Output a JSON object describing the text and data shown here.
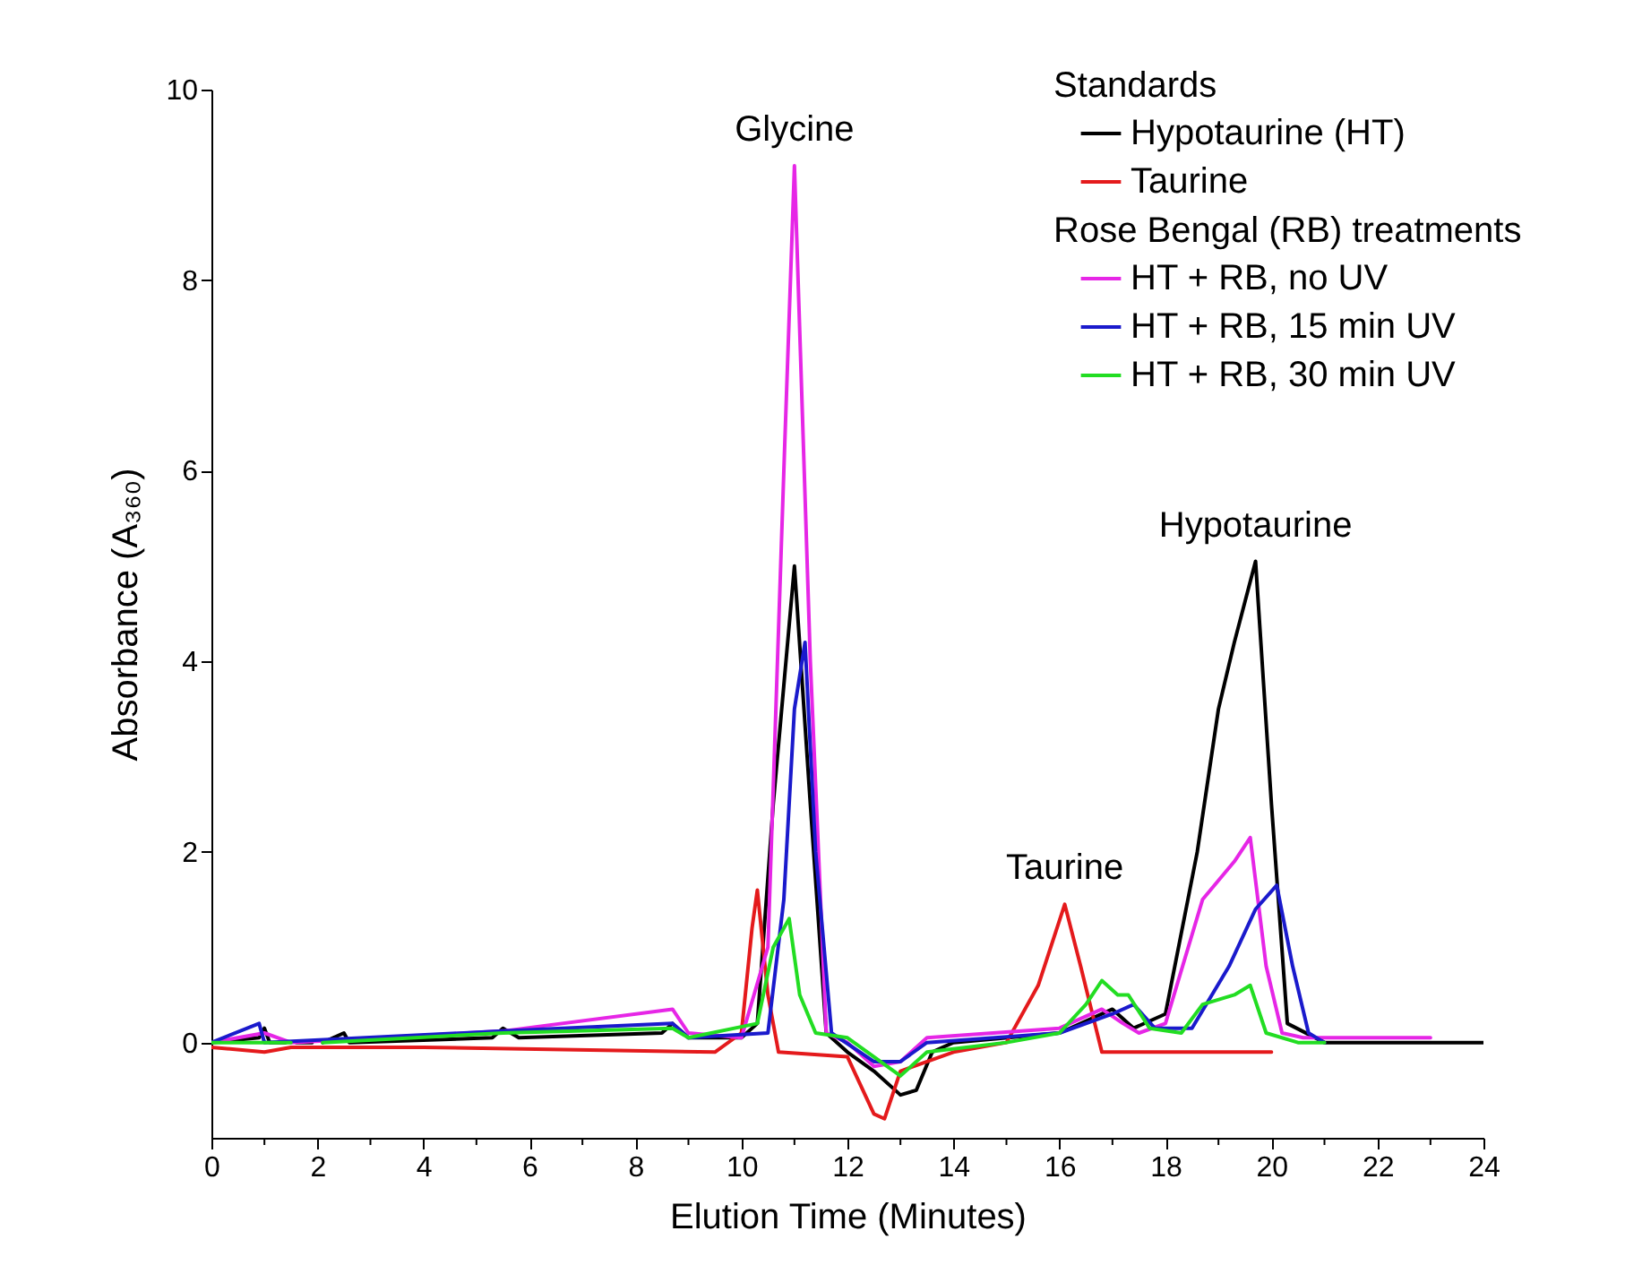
{
  "chart_data": {
    "type": "line",
    "xlabel": "Elution Time (Minutes)",
    "ylabel": "Absorbance (A₃₆₀)",
    "legend_title": [
      "Standards",
      "Rose Bengal (RB) treatments"
    ],
    "legend": "top right",
    "grid": false,
    "line_style": "solid",
    "xlim": [
      0,
      24
    ],
    "ylim": [
      -1,
      10
    ],
    "xticks": [
      0,
      {
        "value": 1,
        "label": null
      },
      2,
      {
        "value": 3,
        "label": null
      },
      4,
      {
        "value": 5,
        "label": null
      },
      6,
      {
        "value": 7,
        "label": null
      },
      8,
      {
        "value": 9,
        "label": null
      },
      10,
      {
        "value": 11,
        "label": null
      },
      12,
      {
        "value": 13,
        "label": null
      },
      14,
      {
        "value": 15,
        "label": null
      },
      16,
      {
        "value": 17,
        "label": null
      },
      18,
      {
        "value": 19,
        "label": null
      },
      20,
      {
        "value": 21,
        "label": null
      },
      22,
      {
        "value": 23,
        "label": null
      },
      24
    ],
    "yticks": [
      0,
      2,
      4,
      6,
      8,
      10
    ],
    "annotations": [
      {
        "text": "Glycine",
        "x": 11.0,
        "y": 9.2
      },
      {
        "text": "Taurine",
        "x": 16.1,
        "y": 1.45
      },
      {
        "text": "Hypotaurine",
        "x": 19.7,
        "y": 5.05
      }
    ],
    "series": [
      {
        "name": "Hypotaurine (HT)",
        "color": "#000000",
        "x": [
          0,
          0.9,
          1.0,
          1.1,
          1.4,
          1.5,
          1.6,
          1.9,
          2.0,
          2.1,
          2.5,
          2.6,
          5.3,
          5.5,
          5.8,
          8.5,
          8.7,
          9.0,
          10.0,
          10.3,
          10.6,
          11.0,
          11.3,
          11.6,
          12.0,
          12.5,
          13.0,
          13.3,
          13.6,
          14,
          16,
          17,
          17.4,
          18,
          18.6,
          19.0,
          19.3,
          19.7,
          20.0,
          20.3,
          21,
          24
        ],
        "values": [
          0,
          0.05,
          0.15,
          0,
          0,
          null,
          0,
          0,
          null,
          0,
          0.1,
          0,
          0.05,
          0.15,
          0.05,
          0.1,
          0.2,
          0.05,
          0.05,
          0.2,
          2.5,
          5.0,
          2.5,
          0.1,
          -0.1,
          -0.3,
          -0.55,
          -0.5,
          -0.1,
          0,
          0.1,
          0.35,
          0.15,
          0.3,
          2.0,
          3.5,
          4.2,
          5.05,
          2.5,
          0.2,
          0,
          0
        ]
      },
      {
        "name": "Taurine",
        "color": "#e41a1c",
        "x": [
          0,
          1,
          1.5,
          4,
          9.5,
          10,
          10.2,
          10.3,
          10.5,
          10.7,
          12,
          12.5,
          12.7,
          13.0,
          14,
          15,
          15.6,
          16.1,
          16.4,
          16.8,
          20
        ],
        "values": [
          -0.05,
          -0.1,
          -0.05,
          -0.05,
          -0.1,
          0.1,
          1.2,
          1.6,
          0.5,
          -0.1,
          -0.15,
          -0.75,
          -0.8,
          -0.3,
          -0.1,
          0,
          0.6,
          1.45,
          0.8,
          -0.1,
          -0.1
        ]
      },
      {
        "name": "HT + RB, no UV",
        "color": "#e626e6",
        "x": [
          0,
          1,
          1.5,
          5.5,
          8.7,
          9,
          10,
          10.5,
          10.8,
          11.0,
          11.3,
          11.6,
          12.0,
          12.5,
          13.0,
          13.5,
          16,
          16.8,
          17.2,
          17.5,
          18,
          18.7,
          19.3,
          19.6,
          19.9,
          20.2,
          20.6,
          23
        ],
        "values": [
          0,
          0.1,
          0,
          0.12,
          0.35,
          0.1,
          0.05,
          1.0,
          6,
          9.2,
          4,
          0.1,
          0,
          -0.25,
          -0.2,
          0.05,
          0.15,
          0.35,
          0.2,
          0.1,
          0.2,
          1.5,
          1.9,
          2.15,
          0.8,
          0.1,
          0.05,
          0.05
        ]
      },
      {
        "name": "HT + RB, 15 min UV",
        "color": "#1a1acc",
        "x": [
          0,
          0.9,
          1.0,
          5.5,
          8.7,
          9.0,
          10.5,
          10.8,
          11.0,
          11.2,
          11.4,
          11.7,
          12.5,
          13,
          13.5,
          16,
          17,
          17.4,
          17.8,
          18.5,
          19.2,
          19.7,
          20.1,
          20.4,
          20.7,
          21
        ],
        "values": [
          0,
          0.2,
          0,
          0.12,
          0.2,
          0.05,
          0.1,
          1.5,
          3.5,
          4.2,
          2.0,
          0.1,
          -0.2,
          -0.2,
          0,
          0.1,
          0.3,
          0.4,
          0.15,
          0.15,
          0.8,
          1.4,
          1.65,
          0.8,
          0.1,
          0
        ]
      },
      {
        "name": "HT + RB, 30 min UV",
        "color": "#22dd22",
        "x": [
          0,
          1.5,
          2.0,
          2.1,
          5.5,
          8.7,
          9.0,
          10.3,
          10.6,
          10.9,
          11.1,
          11.4,
          12,
          12.5,
          13,
          13.5,
          15,
          16,
          16.5,
          16.8,
          17.1,
          17.3,
          17.7,
          18.3,
          18.7,
          19.3,
          19.6,
          19.9,
          20.5,
          21
        ],
        "values": [
          0,
          0,
          null,
          0,
          0.1,
          0.15,
          0.05,
          0.2,
          1.0,
          1.3,
          0.5,
          0.1,
          0.05,
          -0.15,
          -0.35,
          -0.1,
          0,
          0.1,
          0.4,
          0.65,
          0.5,
          0.5,
          0.15,
          0.1,
          0.4,
          0.5,
          0.6,
          0.1,
          0,
          0
        ]
      }
    ]
  }
}
